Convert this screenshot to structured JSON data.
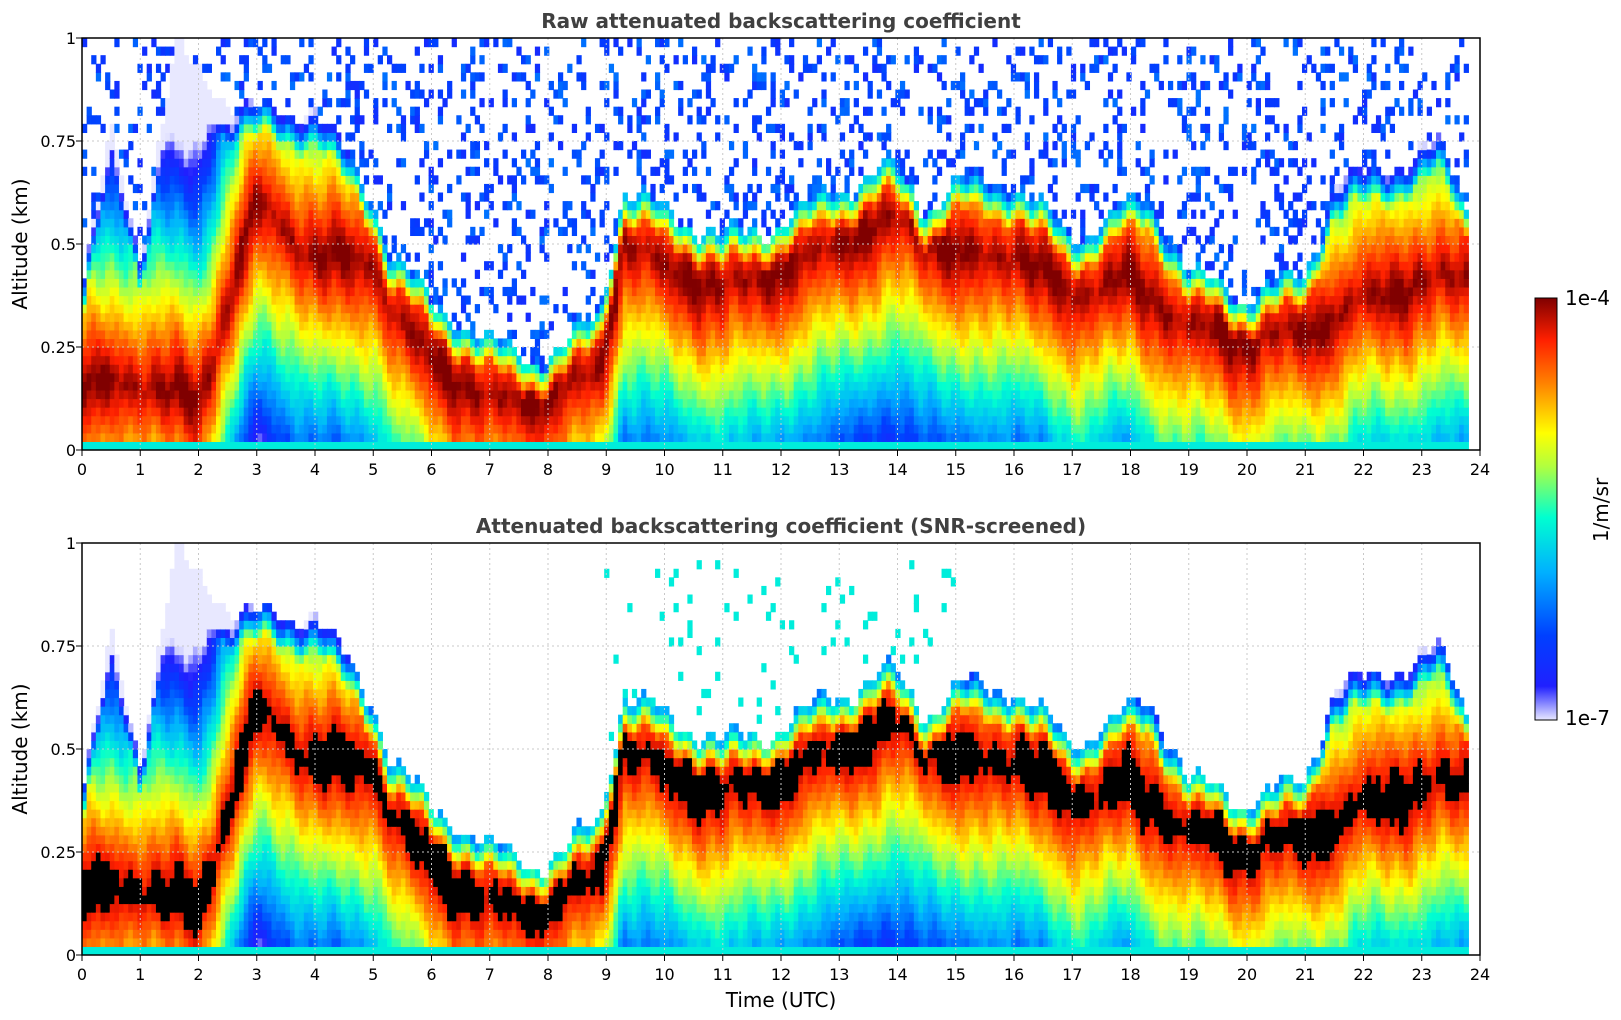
{
  "colors": {
    "black_saturation": "#000000",
    "title_text": "#404040",
    "grid": "#c8c8c8"
  },
  "chart_data": [
    {
      "type": "heatmap",
      "title": "Raw attenuated backscattering coefficient",
      "xlabel": "",
      "ylabel": "Altitude (km)",
      "xlim": [
        0,
        24
      ],
      "ylim": [
        0,
        1
      ],
      "xticks": [
        "0",
        "1",
        "2",
        "3",
        "4",
        "5",
        "6",
        "7",
        "8",
        "9",
        "10",
        "11",
        "12",
        "13",
        "14",
        "15",
        "16",
        "17",
        "18",
        "19",
        "20",
        "21",
        "22",
        "23",
        "24"
      ],
      "yticks": [
        "0",
        "0.25",
        "0.5",
        "0.75",
        "1"
      ],
      "grid": true,
      "data_extent_hours": [
        0,
        23.8
      ],
      "layer_top_km": [
        [
          0.0,
          0.38
        ],
        [
          0.5,
          0.75
        ],
        [
          1.0,
          0.45
        ],
        [
          1.6,
          0.95
        ],
        [
          2.5,
          0.85
        ],
        [
          3.0,
          0.85
        ],
        [
          4.0,
          0.85
        ],
        [
          5.0,
          0.6
        ],
        [
          5.3,
          0.45
        ],
        [
          6.0,
          0.33
        ],
        [
          7.0,
          0.27
        ],
        [
          8.0,
          0.25
        ],
        [
          8.9,
          0.35
        ],
        [
          9.3,
          0.62
        ],
        [
          10.0,
          0.55
        ],
        [
          11.0,
          0.5
        ],
        [
          12.0,
          0.58
        ],
        [
          12.8,
          0.65
        ],
        [
          13.9,
          0.68
        ],
        [
          14.5,
          0.55
        ],
        [
          15.0,
          0.62
        ],
        [
          16.0,
          0.65
        ],
        [
          17.0,
          0.55
        ],
        [
          18.3,
          0.62
        ],
        [
          19.0,
          0.4
        ],
        [
          20.0,
          0.35
        ],
        [
          21.0,
          0.45
        ],
        [
          21.5,
          0.68
        ],
        [
          22.5,
          0.7
        ],
        [
          23.3,
          0.72
        ],
        [
          23.8,
          0.55
        ]
      ],
      "peak_altitude_km": [
        [
          0.0,
          0.15
        ],
        [
          1.0,
          0.15
        ],
        [
          2.0,
          0.1
        ],
        [
          3.0,
          0.62
        ],
        [
          4.0,
          0.48
        ],
        [
          5.0,
          0.45
        ],
        [
          5.4,
          0.3
        ],
        [
          6.0,
          0.2
        ],
        [
          7.0,
          0.12
        ],
        [
          8.0,
          0.15
        ],
        [
          8.9,
          0.2
        ],
        [
          9.3,
          0.5
        ],
        [
          10.0,
          0.42
        ],
        [
          11.0,
          0.38
        ],
        [
          12.0,
          0.45
        ],
        [
          13.0,
          0.52
        ],
        [
          14.0,
          0.55
        ],
        [
          15.0,
          0.45
        ],
        [
          16.0,
          0.48
        ],
        [
          17.0,
          0.4
        ],
        [
          18.0,
          0.42
        ],
        [
          19.0,
          0.28
        ],
        [
          20.0,
          0.25
        ],
        [
          21.0,
          0.3
        ],
        [
          22.0,
          0.38
        ],
        [
          23.0,
          0.4
        ],
        [
          23.8,
          0.4
        ]
      ]
    },
    {
      "type": "heatmap",
      "title": "Attenuated backscattering coefficient (SNR-screened)",
      "xlabel": "Time (UTC)",
      "ylabel": "Altitude (km)",
      "xlim": [
        0,
        24
      ],
      "ylim": [
        0,
        1
      ],
      "xticks": [
        "0",
        "1",
        "2",
        "3",
        "4",
        "5",
        "6",
        "7",
        "8",
        "9",
        "10",
        "11",
        "12",
        "13",
        "14",
        "15",
        "16",
        "17",
        "18",
        "19",
        "20",
        "21",
        "22",
        "23",
        "24"
      ],
      "yticks": [
        "0",
        "0.25",
        "0.5",
        "0.75",
        "1"
      ],
      "grid": true,
      "screened": true,
      "data_extent_hours": [
        0,
        23.8
      ]
    }
  ],
  "colorbar": {
    "label": "1/m/sr",
    "max_label": "1e-4",
    "min_label": "1e-7",
    "scale": "log",
    "range": [
      1e-07,
      0.0001
    ],
    "colormap_stops": [
      "#e8e8ff",
      "#0000ff",
      "#00aaff",
      "#00ffe0",
      "#80ff80",
      "#ffff00",
      "#ff8000",
      "#ff2000",
      "#800000"
    ]
  }
}
